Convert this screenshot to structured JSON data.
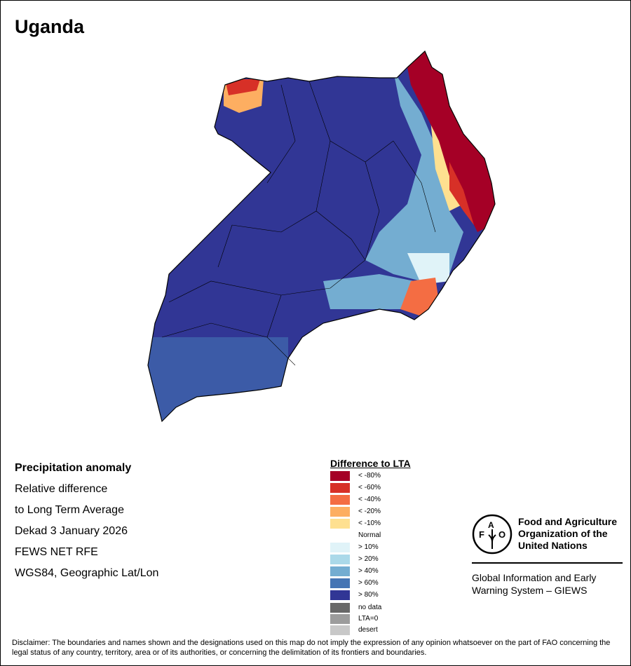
{
  "title": "Uganda",
  "info": [
    "Precipitation anomaly",
    "Relative difference",
    "to Long Term Average",
    "Dekad 3 January 2026",
    "FEWS NET RFE",
    "WGS84, Geographic Lat/Lon"
  ],
  "legend": {
    "title": "Difference to LTA",
    "items": [
      {
        "label": "< -80%",
        "color": "#a50026"
      },
      {
        "label": "< -60%",
        "color": "#d73027"
      },
      {
        "label": "< -40%",
        "color": "#f46d43"
      },
      {
        "label": "< -20%",
        "color": "#fdae61"
      },
      {
        "label": "< -10%",
        "color": "#fee090"
      },
      {
        "label": "Normal",
        "color": "#ffffff"
      },
      {
        "label": "> 10%",
        "color": "#e0f3f8"
      },
      {
        "label": "> 20%",
        "color": "#abd9e9"
      },
      {
        "label": "> 40%",
        "color": "#74add1"
      },
      {
        "label": "> 60%",
        "color": "#4575b4"
      },
      {
        "label": "> 80%",
        "color": "#313695"
      }
    ],
    "extra": [
      {
        "label": "no data",
        "color": "#686868"
      },
      {
        "label": "LTA=0",
        "color": "#9c9c9c"
      },
      {
        "label": "desert",
        "color": "#c8c8c8"
      }
    ]
  },
  "fao": {
    "name": [
      "Food and Agriculture",
      "Organization of the",
      "United Nations"
    ],
    "logo_text": "FAO FIAT PANIS",
    "giews": [
      "Global Information and Early",
      "Warning System – GIEWS"
    ]
  },
  "disclaimer": "Disclaimer: The boundaries and names shown and the designations used on this map do not imply the expression of any opinion whatsoever on the part of FAO concerning the legal status of any country, territory, area or of its authorities, or concerning the delimitation of its frontiers and boundaries."
}
